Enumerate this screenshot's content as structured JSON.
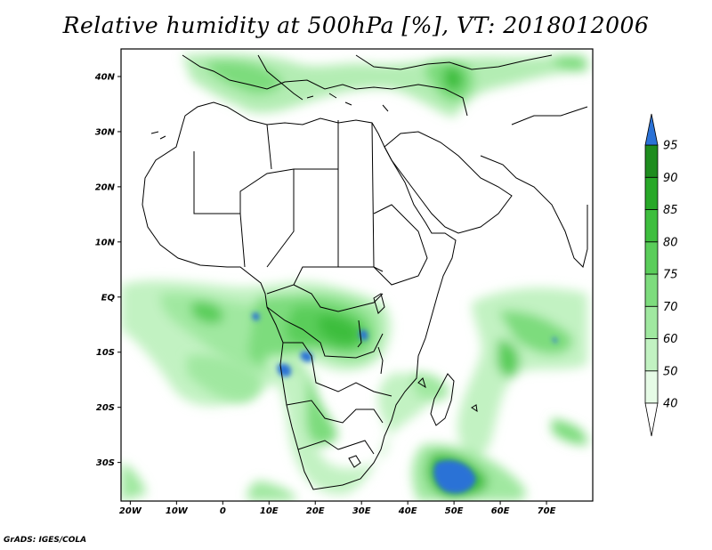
{
  "title": "Relative humidity at 500hPa [%], VT: 2018012006",
  "credit": "GrADS: IGES/COLA",
  "map": {
    "lon_range": [
      -22,
      80
    ],
    "lat_range": [
      -37,
      45
    ],
    "x_ticks": [
      {
        "lon": -20,
        "label": "20W"
      },
      {
        "lon": -10,
        "label": "10W"
      },
      {
        "lon": 0,
        "label": "0"
      },
      {
        "lon": 10,
        "label": "10E"
      },
      {
        "lon": 20,
        "label": "20E"
      },
      {
        "lon": 30,
        "label": "30E"
      },
      {
        "lon": 40,
        "label": "40E"
      },
      {
        "lon": 50,
        "label": "50E"
      },
      {
        "lon": 60,
        "label": "60E"
      },
      {
        "lon": 70,
        "label": "70E"
      }
    ],
    "y_ticks": [
      {
        "lat": 40,
        "label": "40N"
      },
      {
        "lat": 30,
        "label": "30N"
      },
      {
        "lat": 20,
        "label": "20N"
      },
      {
        "lat": 10,
        "label": "10N"
      },
      {
        "lat": 0,
        "label": "EQ"
      },
      {
        "lat": -10,
        "label": "10S"
      },
      {
        "lat": -20,
        "label": "20S"
      },
      {
        "lat": -30,
        "label": "30S"
      }
    ]
  },
  "colorbar": {
    "levels": [
      "40",
      "50",
      "60",
      "70",
      "75",
      "80",
      "85",
      "90",
      "95"
    ],
    "colors": [
      "#ffffff",
      "#e6fbe6",
      "#c2f2c2",
      "#a0e8a0",
      "#7ddc7d",
      "#5acd5a",
      "#3ebe3e",
      "#28a828",
      "#1e8c1e",
      "#2b72d6"
    ]
  }
}
